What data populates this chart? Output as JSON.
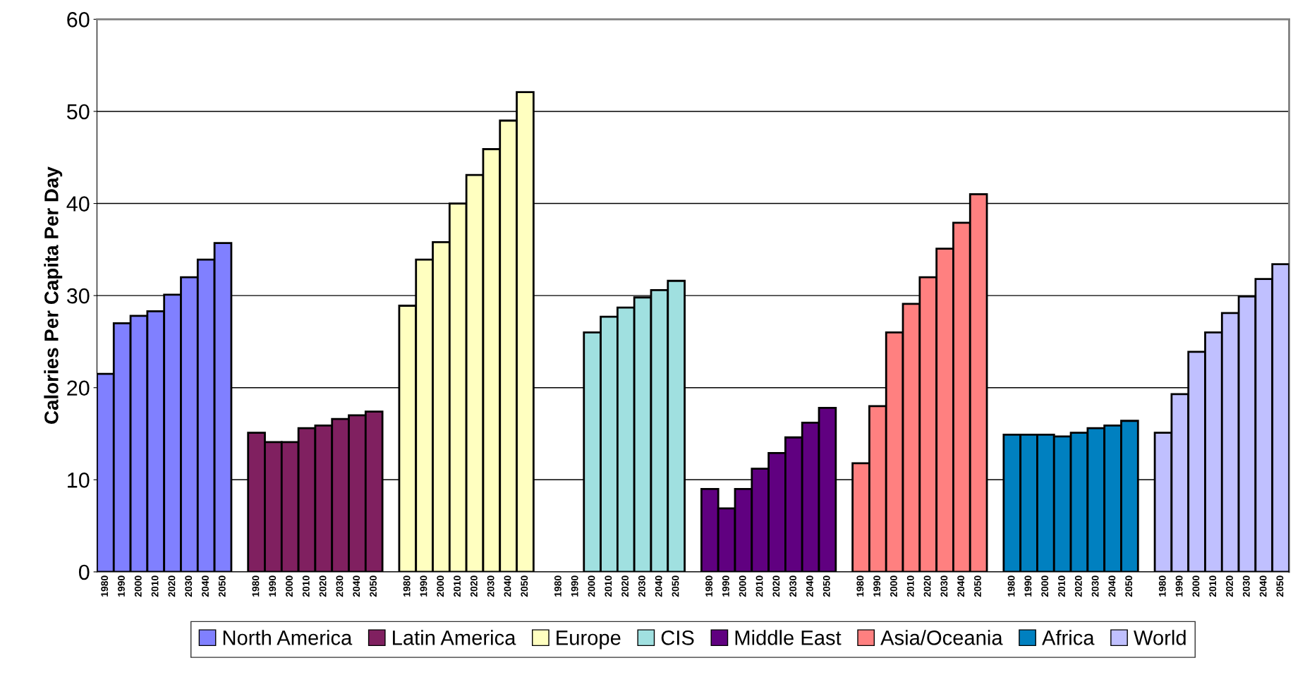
{
  "chart_data": {
    "type": "bar",
    "ylabel": "Calories Per Capita Per Day",
    "categories": [
      "1980",
      "1990",
      "2000",
      "2010",
      "2020",
      "2030",
      "2040",
      "2050",
      null,
      "1980",
      "1990",
      "2000",
      "2010",
      "2020",
      "2030",
      "2040",
      "2050",
      null,
      "1980",
      "1990",
      "2000",
      "2010",
      "2020",
      "2030",
      "2040",
      "2050",
      null,
      "1980",
      "1990",
      "2000",
      "2010",
      "2020",
      "2030",
      "2040",
      "2050",
      null,
      "1980",
      "1990",
      "2000",
      "2010",
      "2020",
      "2030",
      "2040",
      "2050",
      null,
      "1980",
      "1990",
      "2000",
      "2010",
      "2020",
      "2030",
      "2040",
      "2050",
      null,
      "1980",
      "1990",
      "2000",
      "2010",
      "2020",
      "2030",
      "2040",
      "2050",
      null,
      "1980",
      "1990",
      "2000",
      "2010",
      "2020",
      "2030",
      "2040",
      "2050"
    ],
    "series": [
      {
        "name": "North America",
        "color": "#8080ff",
        "values": [
          21.5,
          27.0,
          27.8,
          28.3,
          30.1,
          32.0,
          33.9,
          35.7,
          null,
          null,
          null,
          null,
          null,
          null,
          null,
          null,
          null,
          null,
          null,
          null,
          null,
          null,
          null,
          null,
          null,
          null,
          null,
          null,
          null,
          null,
          null,
          null,
          null,
          null,
          null,
          null,
          null,
          null,
          null,
          null,
          null,
          null,
          null,
          null,
          null,
          null,
          null,
          null,
          null,
          null,
          null,
          null,
          null,
          null,
          null,
          null,
          null,
          null,
          null,
          null,
          null,
          null,
          null,
          null,
          null,
          null,
          null,
          null,
          null,
          null,
          null
        ]
      },
      {
        "name": "Latin America",
        "color": "#802060",
        "values": [
          null,
          null,
          null,
          null,
          null,
          null,
          null,
          null,
          null,
          15.1,
          14.1,
          14.1,
          15.6,
          15.9,
          16.6,
          17.0,
          17.4,
          null,
          null,
          null,
          null,
          null,
          null,
          null,
          null,
          null,
          null,
          null,
          null,
          null,
          null,
          null,
          null,
          null,
          null,
          null,
          null,
          null,
          null,
          null,
          null,
          null,
          null,
          null,
          null,
          null,
          null,
          null,
          null,
          null,
          null,
          null,
          null,
          null,
          null,
          null,
          null,
          null,
          null,
          null,
          null,
          null,
          null,
          null,
          null,
          null,
          null,
          null,
          null,
          null,
          null
        ]
      },
      {
        "name": "Europe",
        "color": "#ffffc0",
        "values": [
          null,
          null,
          null,
          null,
          null,
          null,
          null,
          null,
          null,
          null,
          null,
          null,
          null,
          null,
          null,
          null,
          null,
          null,
          28.9,
          33.9,
          35.8,
          40.0,
          43.1,
          45.9,
          49.0,
          52.1,
          null,
          null,
          null,
          null,
          null,
          null,
          null,
          null,
          null,
          null,
          null,
          null,
          null,
          null,
          null,
          null,
          null,
          null,
          null,
          null,
          null,
          null,
          null,
          null,
          null,
          null,
          null,
          null,
          null,
          null,
          null,
          null,
          null,
          null,
          null,
          null,
          null,
          null,
          null,
          null,
          null,
          null,
          null,
          null,
          null
        ]
      },
      {
        "name": "CIS",
        "color": "#a0e0e0",
        "values": [
          null,
          null,
          null,
          null,
          null,
          null,
          null,
          null,
          null,
          null,
          null,
          null,
          null,
          null,
          null,
          null,
          null,
          null,
          null,
          null,
          null,
          null,
          null,
          null,
          null,
          null,
          null,
          null,
          null,
          26.0,
          27.7,
          28.7,
          29.8,
          30.6,
          31.6,
          null,
          null,
          null,
          null,
          null,
          null,
          null,
          null,
          null,
          null,
          null,
          null,
          null,
          null,
          null,
          null,
          null,
          null,
          null,
          null,
          null,
          null,
          null,
          null,
          null,
          null,
          null,
          null,
          null,
          null,
          null,
          null,
          null,
          null,
          null,
          null
        ]
      },
      {
        "name": "Middle East",
        "color": "#600080",
        "values": [
          null,
          null,
          null,
          null,
          null,
          null,
          null,
          null,
          null,
          null,
          null,
          null,
          null,
          null,
          null,
          null,
          null,
          null,
          null,
          null,
          null,
          null,
          null,
          null,
          null,
          null,
          null,
          null,
          null,
          null,
          null,
          null,
          null,
          null,
          null,
          null,
          9.0,
          6.9,
          9.0,
          11.2,
          12.9,
          14.6,
          16.2,
          17.8,
          null,
          null,
          null,
          null,
          null,
          null,
          null,
          null,
          null,
          null,
          null,
          null,
          null,
          null,
          null,
          null,
          null,
          null,
          null,
          null,
          null,
          null,
          null,
          null,
          null,
          null,
          null
        ]
      },
      {
        "name": "Asia/Oceania",
        "color": "#ff8080",
        "values": [
          null,
          null,
          null,
          null,
          null,
          null,
          null,
          null,
          null,
          null,
          null,
          null,
          null,
          null,
          null,
          null,
          null,
          null,
          null,
          null,
          null,
          null,
          null,
          null,
          null,
          null,
          null,
          null,
          null,
          null,
          null,
          null,
          null,
          null,
          null,
          null,
          null,
          null,
          null,
          null,
          null,
          null,
          null,
          null,
          null,
          11.8,
          18.0,
          26.0,
          29.1,
          32.0,
          35.1,
          37.9,
          41.0,
          null,
          null,
          null,
          null,
          null,
          null,
          null,
          null,
          null,
          null,
          null,
          null,
          null,
          null,
          null,
          null,
          null,
          null
        ]
      },
      {
        "name": "Africa",
        "color": "#0080c0",
        "values": [
          null,
          null,
          null,
          null,
          null,
          null,
          null,
          null,
          null,
          null,
          null,
          null,
          null,
          null,
          null,
          null,
          null,
          null,
          null,
          null,
          null,
          null,
          null,
          null,
          null,
          null,
          null,
          null,
          null,
          null,
          null,
          null,
          null,
          null,
          null,
          null,
          null,
          null,
          null,
          null,
          null,
          null,
          null,
          null,
          null,
          null,
          null,
          null,
          null,
          null,
          null,
          null,
          null,
          null,
          14.9,
          14.9,
          14.9,
          14.7,
          15.1,
          15.6,
          15.9,
          16.4,
          null,
          null,
          null,
          null,
          null,
          null,
          null,
          null,
          null
        ]
      },
      {
        "name": "World",
        "color": "#c0c0ff",
        "values": [
          null,
          null,
          null,
          null,
          null,
          null,
          null,
          null,
          null,
          null,
          null,
          null,
          null,
          null,
          null,
          null,
          null,
          null,
          null,
          null,
          null,
          null,
          null,
          null,
          null,
          null,
          null,
          null,
          null,
          null,
          null,
          null,
          null,
          null,
          null,
          null,
          null,
          null,
          null,
          null,
          null,
          null,
          null,
          null,
          null,
          null,
          null,
          null,
          null,
          null,
          null,
          null,
          null,
          null,
          null,
          null,
          null,
          null,
          null,
          null,
          null,
          null,
          null,
          15.1,
          19.3,
          23.9,
          26.0,
          28.1,
          29.9,
          31.8,
          33.4
        ]
      }
    ],
    "ylim": [
      0,
      60
    ],
    "yticks": [
      0,
      10,
      20,
      30,
      40,
      50,
      60
    ],
    "grid": "y",
    "legend": "bottom"
  }
}
